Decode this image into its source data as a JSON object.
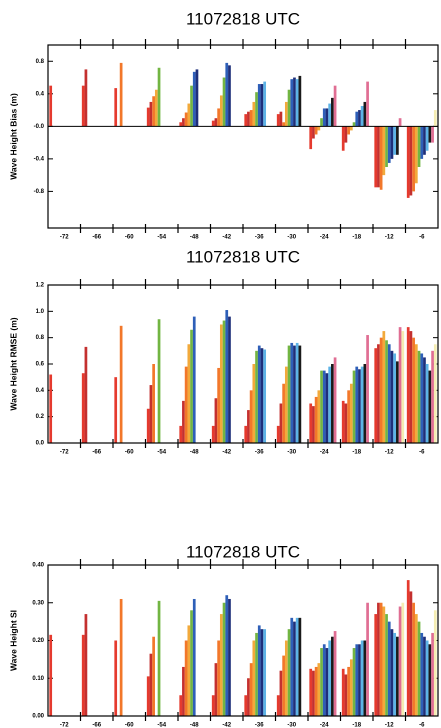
{
  "chart_data": [
    {
      "type": "bar",
      "title": "11072818 UTC",
      "ylabel": "Wave Height Bias (m)",
      "categories": [
        "-72",
        "-66",
        "-60",
        "-54",
        "-48",
        "-42",
        "-36",
        "-30",
        "-24",
        "-18",
        "-12",
        "-6"
      ],
      "ylim": [
        -1.25,
        1.0
      ],
      "yticks": [
        -0.8,
        -0.4,
        {
          "value": 0,
          "label": "-0.0"
        },
        0.4,
        0.8
      ],
      "series": [
        {
          "color": "#e53a2e",
          "values": [
            0.5,
            0.5,
            0.47,
            0.23,
            0.05,
            0.07,
            0.15,
            0.15,
            -0.28,
            -0.3,
            -0.75,
            -0.88
          ]
        },
        {
          "color": "#c4302f",
          "values": [
            null,
            0.7,
            null,
            0.3,
            0.1,
            0.1,
            0.18,
            0.18,
            -0.15,
            -0.2,
            -0.75,
            -0.85
          ]
        },
        {
          "color": "#f2772a",
          "values": [
            null,
            null,
            0.78,
            0.37,
            0.17,
            0.22,
            0.2,
            0.05,
            -0.1,
            -0.1,
            -0.78,
            -0.8
          ]
        },
        {
          "color": "#f2a93b",
          "values": [
            null,
            null,
            null,
            0.45,
            0.28,
            0.38,
            0.3,
            0.3,
            -0.05,
            -0.05,
            -0.6,
            -0.7
          ]
        },
        {
          "color": "#72b542",
          "values": [
            null,
            null,
            null,
            0.72,
            0.5,
            0.6,
            0.42,
            0.45,
            0.1,
            0.05,
            -0.5,
            -0.5
          ]
        },
        {
          "color": "#2e5fb8",
          "values": [
            null,
            null,
            null,
            null,
            0.67,
            0.78,
            0.52,
            0.58,
            0.22,
            0.18,
            -0.45,
            -0.4
          ]
        },
        {
          "color": "#1e2f7a",
          "values": [
            null,
            null,
            null,
            null,
            0.7,
            0.75,
            0.52,
            0.6,
            0.22,
            0.2,
            -0.4,
            -0.35
          ]
        },
        {
          "color": "#5db3e6",
          "values": [
            null,
            null,
            null,
            null,
            null,
            null,
            0.55,
            0.58,
            0.28,
            0.25,
            -0.35,
            -0.3
          ]
        },
        {
          "color": "#1a1a1a",
          "values": [
            null,
            null,
            null,
            null,
            null,
            null,
            null,
            0.62,
            0.35,
            0.3,
            -0.35,
            -0.2
          ]
        },
        {
          "color": "#e06e93",
          "values": [
            null,
            null,
            null,
            null,
            null,
            null,
            null,
            null,
            0.5,
            0.55,
            0.1,
            -0.2
          ]
        },
        {
          "color": "#f5edb3",
          "values": [
            null,
            null,
            null,
            null,
            null,
            null,
            null,
            null,
            null,
            null,
            null,
            0.2
          ]
        }
      ]
    },
    {
      "type": "bar",
      "title": "11072818 UTC",
      "ylabel": "Wave Height RMSE (m)",
      "categories": [
        "-72",
        "-66",
        "-60",
        "-54",
        "-48",
        "-42",
        "-36",
        "-30",
        "-24",
        "-18",
        "-12",
        "-6"
      ],
      "ylim": [
        0,
        1.2
      ],
      "yticks": [
        {
          "value": 0,
          "label": "0.0"
        },
        0.2,
        0.4,
        0.6,
        0.8,
        {
          "value": 1,
          "label": "1.0"
        },
        1.2
      ],
      "series": [
        {
          "color": "#e53a2e",
          "values": [
            0.52,
            0.53,
            0.5,
            0.26,
            0.13,
            0.13,
            0.13,
            0.13,
            0.3,
            0.32,
            0.72,
            0.88
          ]
        },
        {
          "color": "#c4302f",
          "values": [
            null,
            0.73,
            null,
            0.44,
            0.32,
            0.34,
            0.25,
            0.3,
            0.28,
            0.3,
            0.75,
            0.85
          ]
        },
        {
          "color": "#f2772a",
          "values": [
            null,
            null,
            0.89,
            0.6,
            0.58,
            0.57,
            0.4,
            0.45,
            0.35,
            0.4,
            0.8,
            0.8
          ]
        },
        {
          "color": "#f2a93b",
          "values": [
            null,
            null,
            null,
            null,
            0.75,
            0.9,
            0.6,
            0.58,
            0.4,
            0.45,
            0.85,
            0.75
          ]
        },
        {
          "color": "#72b542",
          "values": [
            null,
            null,
            null,
            0.94,
            0.86,
            0.93,
            0.7,
            0.74,
            0.55,
            0.55,
            0.78,
            0.7
          ]
        },
        {
          "color": "#2e5fb8",
          "values": [
            null,
            null,
            null,
            null,
            0.96,
            1.01,
            0.74,
            0.76,
            0.55,
            0.58,
            0.75,
            0.68
          ]
        },
        {
          "color": "#1e2f7a",
          "values": [
            null,
            null,
            null,
            null,
            null,
            0.96,
            0.72,
            0.74,
            0.53,
            0.56,
            0.7,
            0.65
          ]
        },
        {
          "color": "#5db3e6",
          "values": [
            null,
            null,
            null,
            null,
            null,
            null,
            0.71,
            0.76,
            0.58,
            0.58,
            0.68,
            0.6
          ]
        },
        {
          "color": "#1a1a1a",
          "values": [
            null,
            null,
            null,
            null,
            null,
            null,
            null,
            0.74,
            0.6,
            0.6,
            0.62,
            0.55
          ]
        },
        {
          "color": "#e06e93",
          "values": [
            null,
            null,
            null,
            null,
            null,
            null,
            null,
            null,
            0.65,
            0.82,
            0.88,
            0.7
          ]
        },
        {
          "color": "#f5edb3",
          "values": [
            null,
            null,
            null,
            null,
            null,
            null,
            null,
            null,
            null,
            null,
            0.85,
            0.75
          ]
        }
      ]
    },
    {
      "type": "bar",
      "title": "11072818 UTC",
      "ylabel": "Wave Height SI",
      "categories": [
        "-72",
        "-66",
        "-60",
        "-54",
        "-48",
        "-42",
        "-36",
        "-30",
        "-24",
        "-18",
        "-12",
        "-6"
      ],
      "ylim": [
        0,
        0.4
      ],
      "yticks": [
        {
          "value": 0,
          "label": "0.00"
        },
        {
          "value": 0.1,
          "label": "0.10"
        },
        {
          "value": 0.2,
          "label": "0.20"
        },
        {
          "value": 0.3,
          "label": "0.30"
        },
        {
          "value": 0.4,
          "label": "0.40"
        }
      ],
      "series": [
        {
          "color": "#e53a2e",
          "values": [
            0.215,
            0.215,
            0.2,
            0.105,
            0.055,
            0.055,
            0.055,
            0.055,
            0.125,
            0.125,
            0.27,
            0.36
          ]
        },
        {
          "color": "#c4302f",
          "values": [
            null,
            0.27,
            null,
            0.165,
            0.13,
            0.14,
            0.1,
            0.12,
            0.12,
            0.11,
            0.3,
            0.33
          ]
        },
        {
          "color": "#f2772a",
          "values": [
            null,
            null,
            0.31,
            0.21,
            0.2,
            0.2,
            0.14,
            0.16,
            0.13,
            0.13,
            0.3,
            0.3
          ]
        },
        {
          "color": "#f2a93b",
          "values": [
            null,
            null,
            null,
            null,
            0.24,
            0.27,
            0.2,
            0.2,
            0.14,
            0.15,
            0.29,
            0.27
          ]
        },
        {
          "color": "#72b542",
          "values": [
            null,
            null,
            null,
            0.305,
            0.28,
            0.3,
            0.22,
            0.23,
            0.18,
            0.18,
            0.27,
            0.25
          ]
        },
        {
          "color": "#2e5fb8",
          "values": [
            null,
            null,
            null,
            null,
            0.31,
            0.32,
            0.24,
            0.26,
            0.19,
            0.19,
            0.25,
            0.22
          ]
        },
        {
          "color": "#1e2f7a",
          "values": [
            null,
            null,
            null,
            null,
            null,
            0.31,
            0.23,
            0.25,
            0.18,
            0.19,
            0.23,
            0.21
          ]
        },
        {
          "color": "#5db3e6",
          "values": [
            null,
            null,
            null,
            null,
            null,
            null,
            0.23,
            0.26,
            0.2,
            0.2,
            0.22,
            0.2
          ]
        },
        {
          "color": "#1a1a1a",
          "values": [
            null,
            null,
            null,
            null,
            null,
            null,
            null,
            0.26,
            0.21,
            0.2,
            0.21,
            0.19
          ]
        },
        {
          "color": "#e06e93",
          "values": [
            null,
            null,
            null,
            null,
            null,
            null,
            null,
            null,
            0.225,
            0.3,
            0.29,
            0.22
          ]
        },
        {
          "color": "#f5edb3",
          "values": [
            null,
            null,
            null,
            null,
            null,
            null,
            null,
            null,
            null,
            null,
            0.3,
            0.28
          ]
        }
      ]
    }
  ]
}
